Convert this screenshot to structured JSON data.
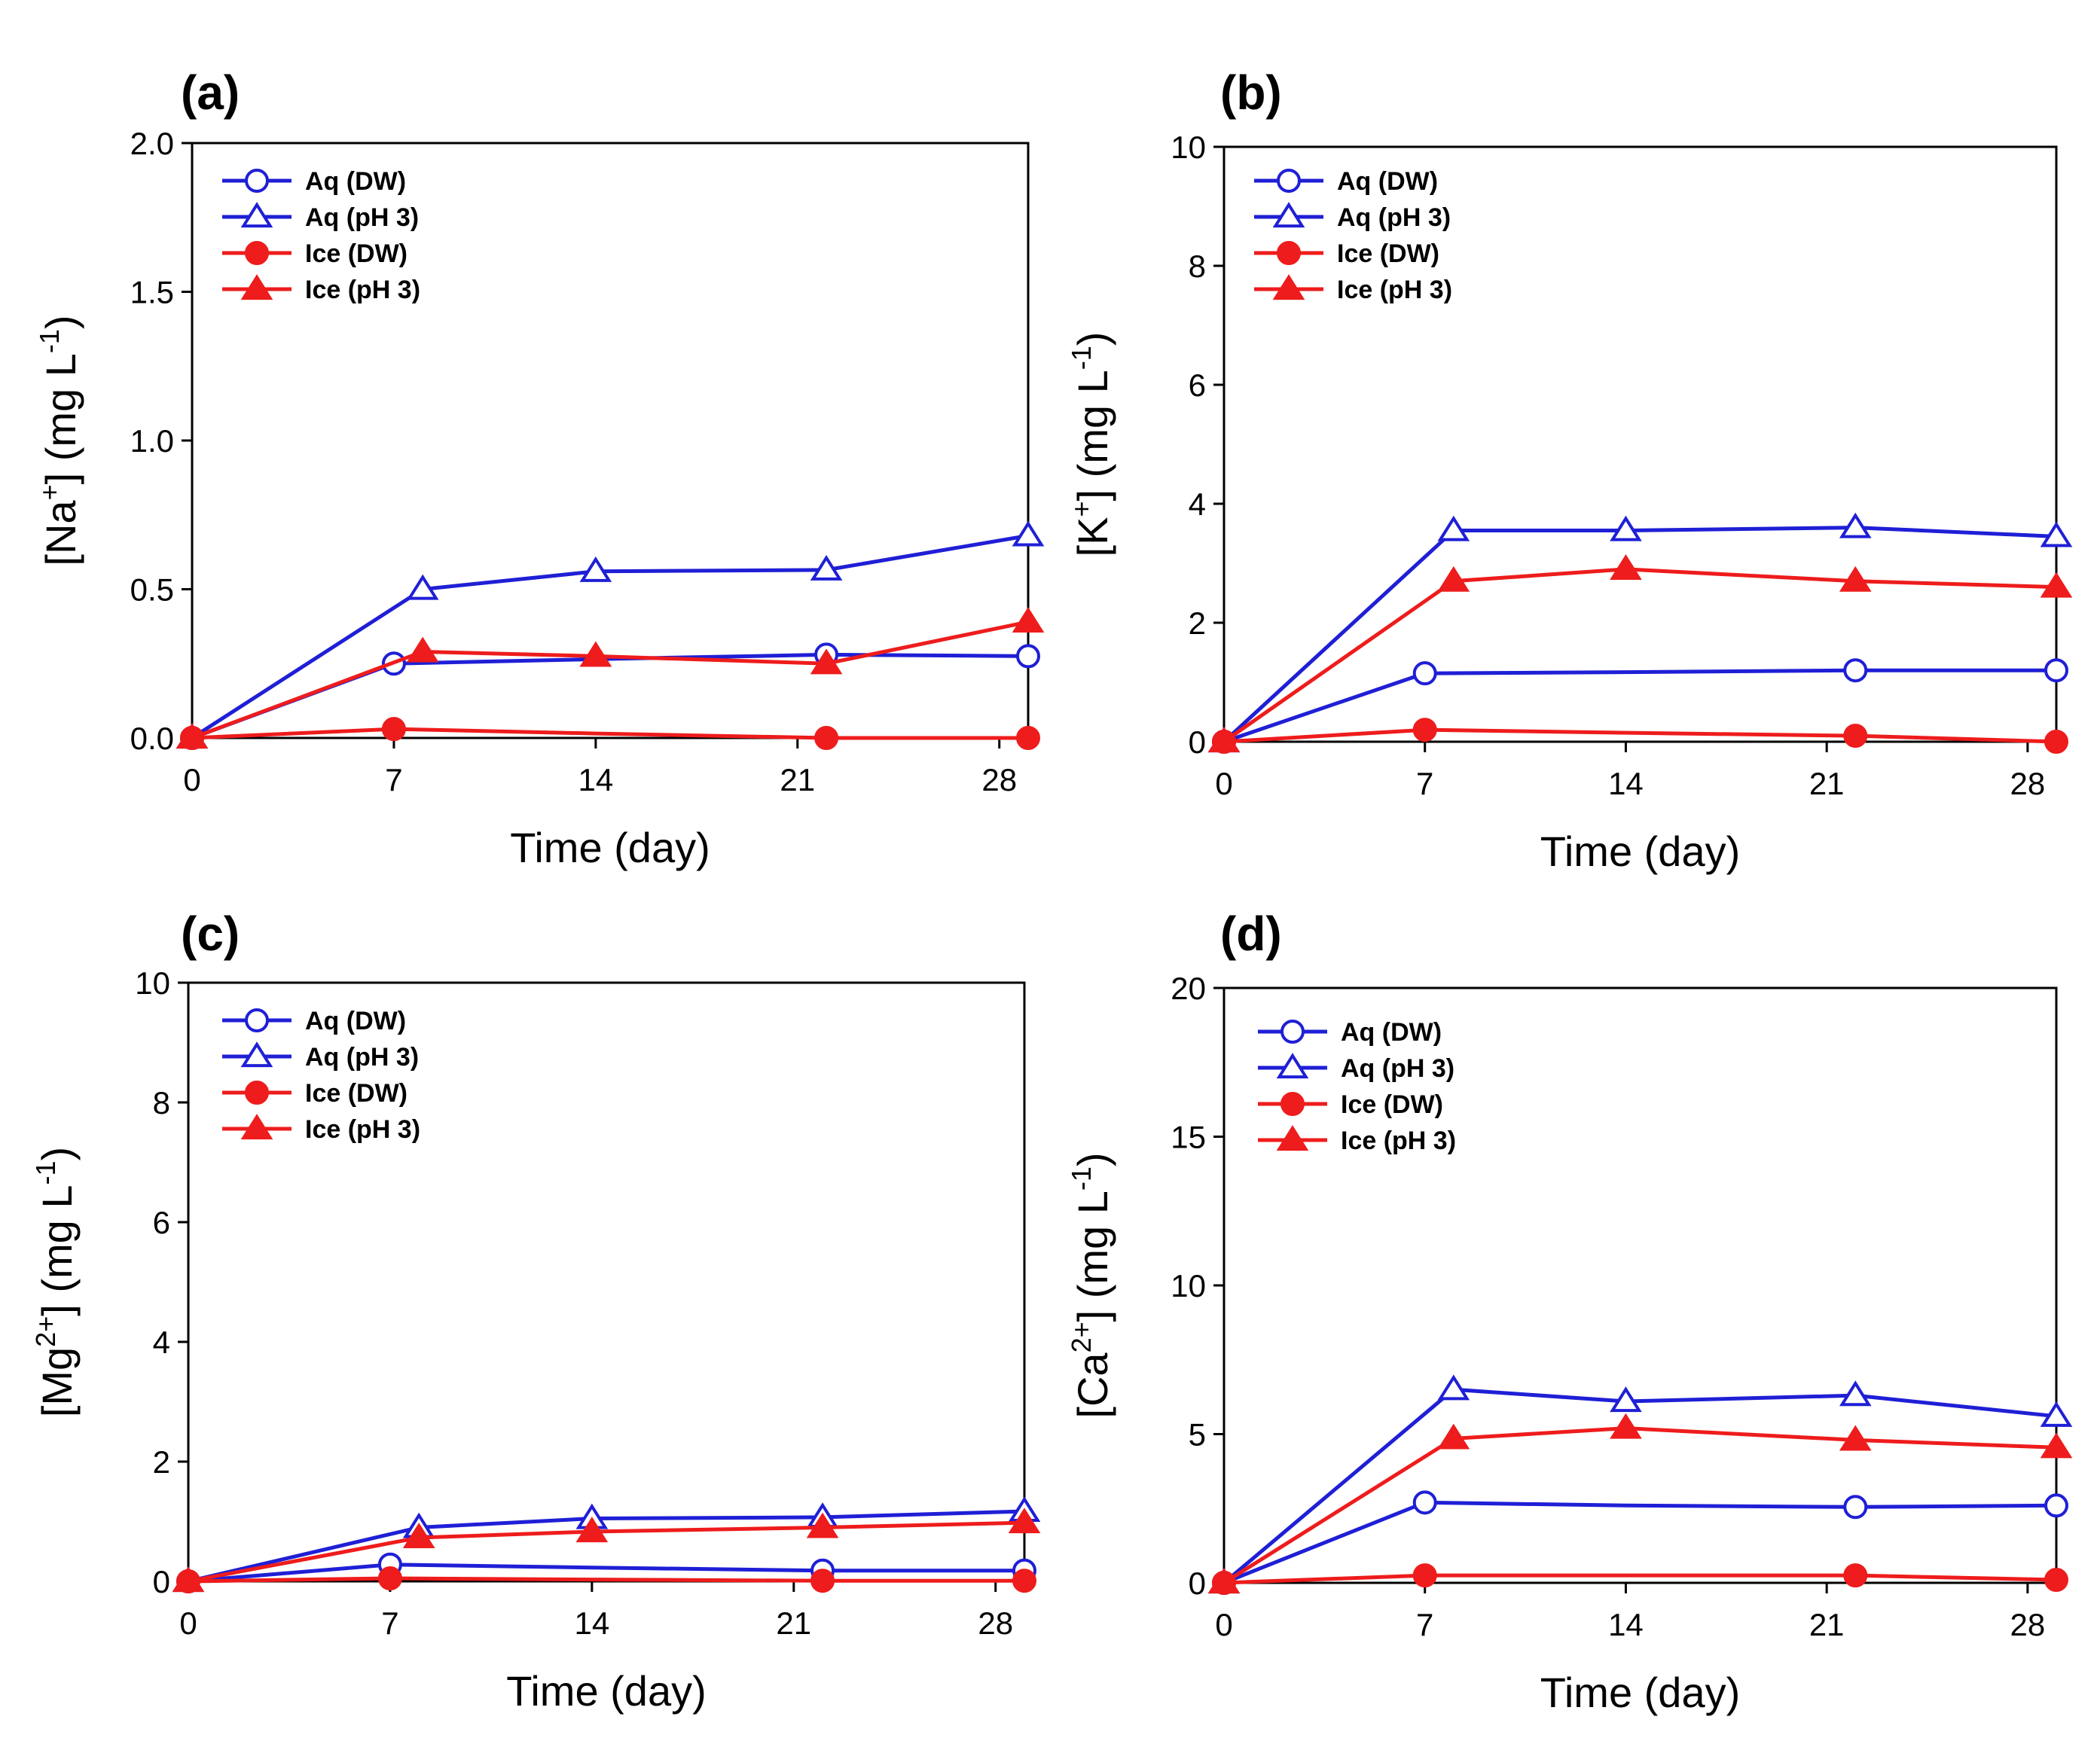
{
  "colors": {
    "aq": "#1f1fd6",
    "ice": "#ee1c1c",
    "axis": "#000000"
  },
  "chart_data": [
    {
      "id": "a",
      "type": "line",
      "panel_label": "(a)",
      "title": "",
      "xlabel": "Time (day)",
      "ylabel": {
        "pre": "[Na",
        "sup": "+",
        "mid": "] (mg L",
        "sup2": "-1",
        "post": ")"
      },
      "xlim": [
        0,
        29
      ],
      "ylim": [
        0,
        2.0
      ],
      "xticks": [
        "0",
        "7",
        "14",
        "21",
        "28"
      ],
      "xtick_values": [
        0,
        7,
        14,
        21,
        28
      ],
      "yticks": [
        "0.0",
        "0.5",
        "1.0",
        "1.5",
        "2.0"
      ],
      "ytick_values": [
        0,
        0.5,
        1.0,
        1.5,
        2.0
      ],
      "legend_position": "top-left",
      "series": [
        {
          "name": "Aq (DW)",
          "color": "aq",
          "marker": "circle",
          "filled": false,
          "x": [
            0,
            7,
            14,
            22,
            29
          ],
          "y": [
            0,
            0.25,
            0.265,
            0.28,
            0.275
          ],
          "markers": [
            0,
            1,
            3,
            4
          ]
        },
        {
          "name": "Aq (pH 3)",
          "color": "aq",
          "marker": "triangle",
          "filled": false,
          "x": [
            0,
            8,
            14,
            22,
            29
          ],
          "y": [
            0,
            0.5,
            0.56,
            0.565,
            0.68
          ],
          "markers": [
            0,
            1,
            2,
            3,
            4
          ]
        },
        {
          "name": "Ice (DW)",
          "color": "ice",
          "marker": "circle",
          "filled": true,
          "x": [
            0,
            7,
            14,
            22,
            29
          ],
          "y": [
            0,
            0.03,
            0.015,
            0,
            0
          ],
          "markers": [
            0,
            1,
            3,
            4
          ]
        },
        {
          "name": "Ice (pH 3)",
          "color": "ice",
          "marker": "triangle",
          "filled": true,
          "x": [
            0,
            8,
            14,
            22,
            29
          ],
          "y": [
            0,
            0.29,
            0.275,
            0.25,
            0.39
          ],
          "markers": [
            0,
            1,
            2,
            3,
            4
          ]
        }
      ]
    },
    {
      "id": "b",
      "type": "line",
      "panel_label": "(b)",
      "title": "",
      "xlabel": "Time (day)",
      "ylabel": {
        "pre": "[K",
        "sup": "+",
        "mid": "] (mg L",
        "sup2": "-1",
        "post": ")"
      },
      "xlim": [
        0,
        29
      ],
      "ylim": [
        0,
        10
      ],
      "xticks": [
        "0",
        "7",
        "14",
        "21",
        "28"
      ],
      "xtick_values": [
        0,
        7,
        14,
        21,
        28
      ],
      "yticks": [
        "0",
        "2",
        "4",
        "6",
        "8",
        "10"
      ],
      "ytick_values": [
        0,
        2,
        4,
        6,
        8,
        10
      ],
      "legend_position": "top-left",
      "series": [
        {
          "name": "Aq (DW)",
          "color": "aq",
          "marker": "circle",
          "filled": false,
          "x": [
            0,
            7,
            14,
            22,
            29
          ],
          "y": [
            0,
            1.15,
            1.17,
            1.2,
            1.2
          ],
          "markers": [
            0,
            1,
            3,
            4
          ]
        },
        {
          "name": "Aq (pH 3)",
          "color": "aq",
          "marker": "triangle",
          "filled": false,
          "x": [
            0,
            8,
            14,
            22,
            29
          ],
          "y": [
            0,
            3.55,
            3.55,
            3.6,
            3.45
          ],
          "markers": [
            0,
            1,
            2,
            3,
            4
          ]
        },
        {
          "name": "Ice (DW)",
          "color": "ice",
          "marker": "circle",
          "filled": true,
          "x": [
            0,
            7,
            14,
            22,
            29
          ],
          "y": [
            0,
            0.2,
            0.15,
            0.1,
            0
          ],
          "markers": [
            0,
            1,
            3,
            4
          ]
        },
        {
          "name": "Ice (pH 3)",
          "color": "ice",
          "marker": "triangle",
          "filled": true,
          "x": [
            0,
            8,
            14,
            22,
            29
          ],
          "y": [
            0,
            2.7,
            2.9,
            2.7,
            2.6
          ],
          "markers": [
            0,
            1,
            2,
            3,
            4
          ]
        }
      ]
    },
    {
      "id": "c",
      "type": "line",
      "panel_label": "(c)",
      "title": "",
      "xlabel": "Time (day)",
      "ylabel": {
        "pre": "[Mg",
        "sup": "2+",
        "mid": "] (mg L",
        "sup2": "-1",
        "post": ")"
      },
      "xlim": [
        0,
        29
      ],
      "ylim": [
        0,
        10
      ],
      "xticks": [
        "0",
        "7",
        "14",
        "21",
        "28"
      ],
      "xtick_values": [
        0,
        7,
        14,
        21,
        28
      ],
      "yticks": [
        "0",
        "2",
        "4",
        "6",
        "8",
        "10"
      ],
      "ytick_values": [
        0,
        2,
        4,
        6,
        8,
        10
      ],
      "legend_position": "top-left",
      "series": [
        {
          "name": "Aq (DW)",
          "color": "aq",
          "marker": "circle",
          "filled": false,
          "x": [
            0,
            7,
            14,
            22,
            29
          ],
          "y": [
            0,
            0.28,
            0.23,
            0.18,
            0.18
          ],
          "markers": [
            0,
            1,
            3,
            4
          ]
        },
        {
          "name": "Aq (pH 3)",
          "color": "aq",
          "marker": "triangle",
          "filled": false,
          "x": [
            0,
            8,
            14,
            22,
            29
          ],
          "y": [
            0,
            0.9,
            1.05,
            1.07,
            1.17
          ],
          "markers": [
            0,
            1,
            2,
            3,
            4
          ]
        },
        {
          "name": "Ice (DW)",
          "color": "ice",
          "marker": "circle",
          "filled": true,
          "x": [
            0,
            7,
            14,
            22,
            29
          ],
          "y": [
            0,
            0.05,
            0.03,
            0.01,
            0.01
          ],
          "markers": [
            0,
            1,
            3,
            4
          ]
        },
        {
          "name": "Ice (pH 3)",
          "color": "ice",
          "marker": "triangle",
          "filled": true,
          "x": [
            0,
            8,
            14,
            22,
            29
          ],
          "y": [
            0,
            0.73,
            0.83,
            0.9,
            0.98
          ],
          "markers": [
            0,
            1,
            2,
            3,
            4
          ]
        }
      ]
    },
    {
      "id": "d",
      "type": "line",
      "panel_label": "(d)",
      "title": "",
      "xlabel": "Time (day)",
      "ylabel": {
        "pre": "[Ca",
        "sup": "2+",
        "mid": "] (mg L",
        "sup2": "-1",
        "post": ")"
      },
      "xlim": [
        0,
        29
      ],
      "ylim": [
        0,
        20
      ],
      "xticks": [
        "0",
        "7",
        "14",
        "21",
        "28"
      ],
      "xtick_values": [
        0,
        7,
        14,
        21,
        28
      ],
      "yticks": [
        "0",
        "5",
        "10",
        "15",
        "20"
      ],
      "ytick_values": [
        0,
        5,
        10,
        15,
        20
      ],
      "legend_position": "top-left",
      "series": [
        {
          "name": "Aq (DW)",
          "color": "aq",
          "marker": "circle",
          "filled": false,
          "x": [
            0,
            7,
            14,
            22,
            29
          ],
          "y": [
            0,
            2.7,
            2.6,
            2.55,
            2.6
          ],
          "markers": [
            0,
            1,
            3,
            4
          ]
        },
        {
          "name": "Aq (pH 3)",
          "color": "aq",
          "marker": "triangle",
          "filled": false,
          "x": [
            0,
            8,
            14,
            22,
            29
          ],
          "y": [
            0,
            6.5,
            6.1,
            6.3,
            5.6
          ],
          "markers": [
            0,
            1,
            2,
            3,
            4
          ]
        },
        {
          "name": "Ice (DW)",
          "color": "ice",
          "marker": "circle",
          "filled": true,
          "x": [
            0,
            7,
            14,
            22,
            29
          ],
          "y": [
            0,
            0.25,
            0.25,
            0.25,
            0.1
          ],
          "markers": [
            0,
            1,
            3,
            4
          ]
        },
        {
          "name": "Ice (pH 3)",
          "color": "ice",
          "marker": "triangle",
          "filled": true,
          "x": [
            0,
            8,
            14,
            22,
            29
          ],
          "y": [
            0,
            4.85,
            5.2,
            4.8,
            4.55
          ],
          "markers": [
            0,
            1,
            2,
            3,
            4
          ]
        }
      ]
    }
  ]
}
